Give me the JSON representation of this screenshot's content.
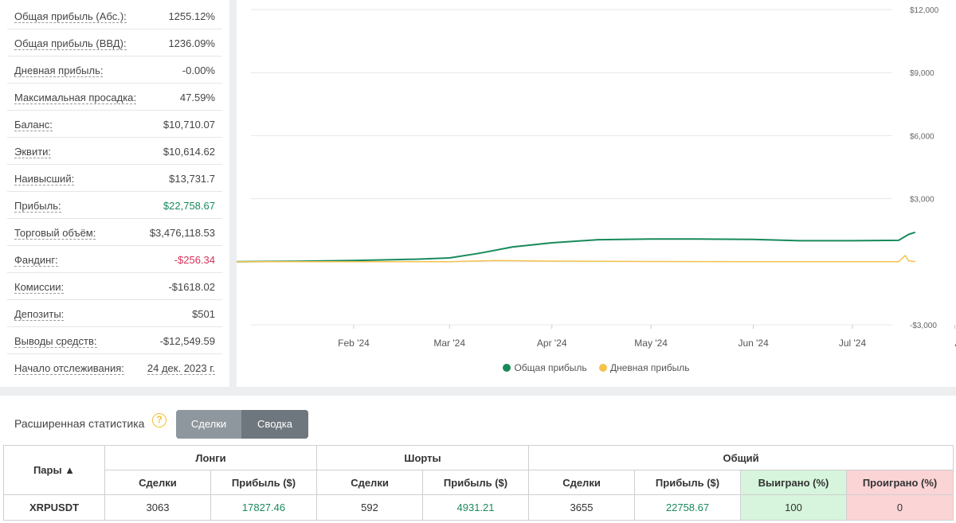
{
  "stats": [
    {
      "label": "Общая прибыль (Абс.):",
      "value": "1255.12%",
      "tone": ""
    },
    {
      "label": "Общая прибыль (ВВД):",
      "value": "1236.09%",
      "tone": ""
    },
    {
      "label": "Дневная прибыль:",
      "value": "-0.00%",
      "tone": ""
    },
    {
      "label": "Максимальная просадка:",
      "value": "47.59%",
      "tone": ""
    },
    {
      "label": "Баланс:",
      "value": "$10,710.07",
      "tone": ""
    },
    {
      "label": "Эквити:",
      "value": "$10,614.62",
      "tone": ""
    },
    {
      "label": "Наивысший:",
      "value": "$13,731.7",
      "tone": ""
    },
    {
      "label": "Прибыль:",
      "value": "$22,758.67",
      "tone": "green"
    },
    {
      "label": "Торговый объём:",
      "value": "$3,476,118.53",
      "tone": ""
    },
    {
      "label": "Фандинг:",
      "value": "-$256.34",
      "tone": "red"
    },
    {
      "label": "Комиссии:",
      "value": "-$1618.02",
      "tone": ""
    },
    {
      "label": "Депозиты:",
      "value": "$501",
      "tone": ""
    },
    {
      "label": "Выводы средств:",
      "value": "-$12,549.59",
      "tone": ""
    },
    {
      "label": "Начало отслеживания:",
      "value": "24 дек. 2023 г.",
      "tone": "dashed"
    }
  ],
  "chart_data": {
    "type": "line",
    "x_tick_labels": [
      "Feb '24",
      "Mar '24",
      "Apr '24",
      "May '24",
      "Jun '24",
      "Jul '24",
      "Aug"
    ],
    "y_tick_labels": [
      "$12,000",
      "$9,000",
      "$6,000",
      "$3,000",
      "-$3,000"
    ],
    "ylim": [
      -3000,
      12000
    ],
    "y_ticks": [
      12000,
      9000,
      6000,
      3000,
      0,
      -3000
    ],
    "grid": true,
    "legend_position": "bottom",
    "series": [
      {
        "name": "Общая прибыль",
        "color": "#178a5a",
        "x": [
          "2023-12-24",
          "2024-01-15",
          "2024-02-01",
          "2024-02-20",
          "2024-03-01",
          "2024-03-10",
          "2024-03-20",
          "2024-04-01",
          "2024-04-15",
          "2024-05-01",
          "2024-05-15",
          "2024-06-01",
          "2024-06-15",
          "2024-07-01",
          "2024-07-15",
          "2024-07-18",
          "2024-07-20"
        ],
        "values": [
          0,
          20,
          60,
          120,
          180,
          400,
          700,
          900,
          1050,
          1080,
          1080,
          1060,
          1000,
          1000,
          1020,
          1300,
          1400
        ]
      },
      {
        "name": "Дневная прибыль",
        "color": "#f5c24c",
        "x": [
          "2023-12-24",
          "2024-03-01",
          "2024-03-15",
          "2024-04-01",
          "2024-05-01",
          "2024-07-15",
          "2024-07-17",
          "2024-07-18",
          "2024-07-20"
        ],
        "values": [
          0,
          0,
          60,
          30,
          10,
          0,
          300,
          40,
          0
        ]
      }
    ]
  },
  "extended": {
    "title": "Расширенная статистика",
    "help": "?",
    "tabs": [
      "Сделки",
      "Сводка"
    ]
  },
  "table": {
    "pairs_header": "Пары ▲",
    "group_headers": [
      "Лонги",
      "Шорты",
      "Общий"
    ],
    "sub_headers": [
      "Сделки",
      "Прибыль ($)",
      "Сделки",
      "Прибыль ($)",
      "Сделки",
      "Прибыль ($)",
      "Выиграно (%)",
      "Проиграно (%)"
    ],
    "rows": [
      [
        "XRPUSDT",
        "3063",
        "17827.46",
        "592",
        "4931.21",
        "3655",
        "22758.67",
        "100",
        "0"
      ]
    ]
  }
}
